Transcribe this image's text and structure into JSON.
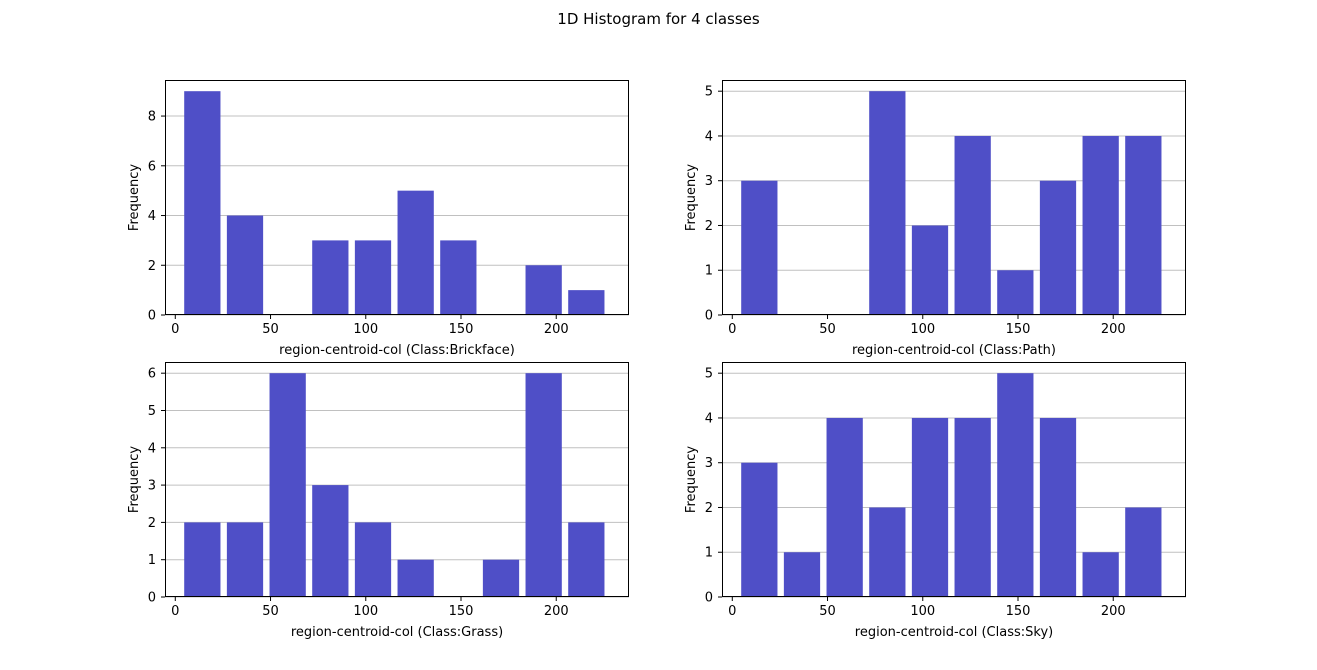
{
  "figure": {
    "suptitle": "1D Histogram for 4 classes"
  },
  "style": {
    "bar_color": "#4f4fc7",
    "grid_color": "#c0c0c0"
  },
  "chart_data": [
    {
      "type": "bar",
      "title": "",
      "xlabel": "region-centroid-col (Class:Brickface)",
      "ylabel": "Frequency",
      "bin_edges": [
        3,
        25.4,
        47.8,
        70.2,
        92.6,
        115,
        137.4,
        159.8,
        182.2,
        204.6,
        227
      ],
      "values": [
        9,
        4,
        0,
        3,
        3,
        5,
        3,
        0,
        2,
        1
      ],
      "xlim": [
        -5.4,
        238.2
      ],
      "ylim": [
        0,
        9.45
      ],
      "xticks": [
        0,
        50,
        100,
        150,
        200
      ],
      "yticks": [
        0,
        2,
        4,
        6,
        8
      ],
      "grid": "y"
    },
    {
      "type": "bar",
      "title": "",
      "xlabel": "region-centroid-col (Class:Path)",
      "ylabel": "Frequency",
      "bin_edges": [
        3,
        25.4,
        47.8,
        70.2,
        92.6,
        115,
        137.4,
        159.8,
        182.2,
        204.6,
        227
      ],
      "values": [
        3,
        0,
        0,
        5,
        2,
        4,
        1,
        3,
        4,
        4
      ],
      "xlim": [
        -5.4,
        238.2
      ],
      "ylim": [
        0,
        5.25
      ],
      "xticks": [
        0,
        50,
        100,
        150,
        200
      ],
      "yticks": [
        0,
        1,
        2,
        3,
        4,
        5
      ],
      "grid": "y"
    },
    {
      "type": "bar",
      "title": "",
      "xlabel": "region-centroid-col (Class:Grass)",
      "ylabel": "Frequency",
      "bin_edges": [
        3,
        25.4,
        47.8,
        70.2,
        92.6,
        115,
        137.4,
        159.8,
        182.2,
        204.6,
        227
      ],
      "values": [
        2,
        2,
        6,
        3,
        2,
        1,
        0,
        1,
        6,
        2
      ],
      "xlim": [
        -5.4,
        238.2
      ],
      "ylim": [
        0,
        6.3
      ],
      "xticks": [
        0,
        50,
        100,
        150,
        200
      ],
      "yticks": [
        0,
        1,
        2,
        3,
        4,
        5,
        6
      ],
      "grid": "y"
    },
    {
      "type": "bar",
      "title": "",
      "xlabel": "region-centroid-col (Class:Sky)",
      "ylabel": "Frequency",
      "bin_edges": [
        3,
        25.4,
        47.8,
        70.2,
        92.6,
        115,
        137.4,
        159.8,
        182.2,
        204.6,
        227
      ],
      "values": [
        3,
        1,
        4,
        2,
        4,
        4,
        5,
        4,
        1,
        2
      ],
      "xlim": [
        -5.4,
        238.2
      ],
      "ylim": [
        0,
        5.25
      ],
      "xticks": [
        0,
        50,
        100,
        150,
        200
      ],
      "yticks": [
        0,
        1,
        2,
        3,
        4,
        5
      ],
      "grid": "y"
    }
  ]
}
